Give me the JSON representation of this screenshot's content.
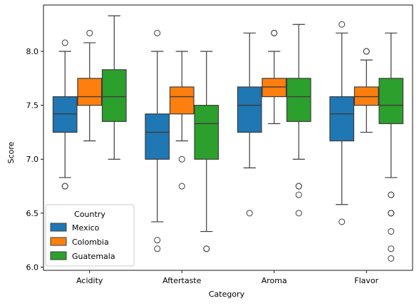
{
  "chart_data": {
    "type": "box",
    "xlabel": "Category",
    "ylabel": "Score",
    "ylim": [
      5.97,
      8.43
    ],
    "yticks": [
      "6.0",
      "6.5",
      "7.0",
      "7.5",
      "8.0"
    ],
    "ytick_values": [
      6.0,
      6.5,
      7.0,
      7.5,
      8.0
    ],
    "categories": [
      "Acidity",
      "Aftertaste",
      "Aroma",
      "Flavor"
    ],
    "legend": {
      "title": "Country",
      "placement": "lower-left"
    },
    "series": [
      {
        "name": "Mexico",
        "color": "#1f77b4",
        "boxes": [
          {
            "q1": 7.25,
            "median": 7.42,
            "q3": 7.58,
            "whisker_low": 6.83,
            "whisker_high": 8.0,
            "outliers": [
              8.08,
              6.75,
              6.75
            ]
          },
          {
            "q1": 7.0,
            "median": 7.25,
            "q3": 7.42,
            "whisker_low": 6.42,
            "whisker_high": 8.0,
            "outliers": [
              8.17,
              6.25,
              6.17
            ]
          },
          {
            "q1": 7.25,
            "median": 7.5,
            "q3": 7.67,
            "whisker_low": 6.92,
            "whisker_high": 8.17,
            "outliers": [
              6.5
            ]
          },
          {
            "q1": 7.17,
            "median": 7.42,
            "q3": 7.58,
            "whisker_low": 6.58,
            "whisker_high": 8.17,
            "outliers": [
              8.25,
              6.42
            ]
          }
        ]
      },
      {
        "name": "Colombia",
        "color": "#ff7f0e",
        "boxes": [
          {
            "q1": 7.5,
            "median": 7.58,
            "q3": 7.75,
            "whisker_low": 7.17,
            "whisker_high": 8.08,
            "outliers": [
              8.17
            ]
          },
          {
            "q1": 7.42,
            "median": 7.58,
            "q3": 7.67,
            "whisker_low": 7.17,
            "whisker_high": 8.0,
            "outliers": [
              7.0,
              6.75
            ]
          },
          {
            "q1": 7.58,
            "median": 7.67,
            "q3": 7.75,
            "whisker_low": 7.33,
            "whisker_high": 8.0,
            "outliers": [
              8.17,
              8.17
            ]
          },
          {
            "q1": 7.5,
            "median": 7.58,
            "q3": 7.67,
            "whisker_low": 7.25,
            "whisker_high": 7.92,
            "outliers": [
              8.0,
              8.0
            ]
          }
        ]
      },
      {
        "name": "Guatemala",
        "color": "#2ca02c",
        "boxes": [
          {
            "q1": 7.35,
            "median": 7.58,
            "q3": 7.83,
            "whisker_low": 7.0,
            "whisker_high": 8.33,
            "outliers": []
          },
          {
            "q1": 7.0,
            "median": 7.33,
            "q3": 7.5,
            "whisker_low": 6.33,
            "whisker_high": 8.0,
            "outliers": [
              6.17,
              6.17
            ]
          },
          {
            "q1": 7.35,
            "median": 7.58,
            "q3": 7.75,
            "whisker_low": 7.0,
            "whisker_high": 8.25,
            "outliers": [
              6.75,
              6.75,
              6.67,
              6.5
            ]
          },
          {
            "q1": 7.33,
            "median": 7.5,
            "q3": 7.75,
            "whisker_low": 6.83,
            "whisker_high": 8.17,
            "outliers": [
              6.67,
              6.67,
              6.5,
              6.5,
              6.5,
              6.33,
              6.17,
              6.08
            ]
          }
        ]
      }
    ],
    "grid": false
  }
}
